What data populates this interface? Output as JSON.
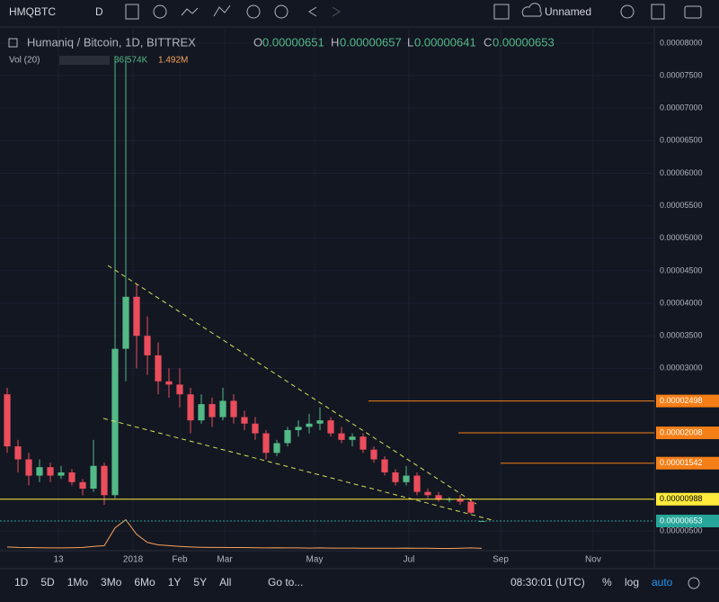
{
  "toolbar": {
    "symbol": "HMQBTC",
    "interval": "D",
    "layout": "Unnamed"
  },
  "legend": {
    "title": "Humaniq / Bitcoin, 1D, BITTREX",
    "o_label": "O",
    "o": 6.51e-06,
    "h_label": "H",
    "h": 6.57e-06,
    "l_label": "L",
    "l": 6.41e-06,
    "c_label": "C",
    "c": 6.53e-06,
    "vol_title": "Vol (20)",
    "vol_value": "36.574K",
    "vol_ma": "1.492M"
  },
  "bottom_bar": {
    "ranges": [
      "1D",
      "5D",
      "1Mo",
      "3Mo",
      "6Mo",
      "1Y",
      "5Y",
      "All"
    ],
    "goto": "Go to...",
    "clock": "08:30:01 (UTC)",
    "percent": "%",
    "log": "log",
    "auto": "auto"
  },
  "chart_data": {
    "type": "candlestick",
    "up_color": "#53b987",
    "down_color": "#eb4d5c",
    "open": [
      2.6e-05,
      1.8e-05,
      1.6e-05,
      1.35e-05,
      1.48e-05,
      1.35e-05,
      1.4e-05,
      1.25e-05,
      1.15e-05,
      1.5e-05,
      1.05e-05,
      3.3e-05,
      4.1e-05,
      3.5e-05,
      3.2e-05,
      2.8e-05,
      2.75e-05,
      2.6e-05,
      2.2e-05,
      2.45e-05,
      2.25e-05,
      2.5e-05,
      2.25e-05,
      2.15e-05,
      2e-05,
      1.7e-05,
      1.85e-05,
      2.05e-05,
      2.1e-05,
      2.15e-05,
      2.2e-05,
      2e-05,
      1.9e-05,
      1.95e-05,
      1.75e-05,
      1.6e-05,
      1.4e-05,
      1.25e-05,
      1.35e-05,
      1.1e-05,
      1.05e-05,
      9.8e-06,
      9.9e-06,
      9.5e-06,
      6.51e-06
    ],
    "high": [
      2.7e-05,
      1.9e-05,
      1.7e-05,
      1.6e-05,
      1.55e-05,
      1.5e-05,
      1.45e-05,
      1.3e-05,
      1.9e-05,
      1.55e-05,
      7.8e-05,
      7.8e-05,
      4.3e-05,
      3.8e-05,
      3.4e-05,
      3e-05,
      3e-05,
      2.7e-05,
      2.6e-05,
      2.55e-05,
      2.7e-05,
      2.6e-05,
      2.35e-05,
      2.25e-05,
      2.05e-05,
      1.9e-05,
      2.1e-05,
      2.2e-05,
      2.3e-05,
      2.4e-05,
      2.25e-05,
      2.1e-05,
      2e-05,
      2e-05,
      1.8e-05,
      1.65e-05,
      1.45e-05,
      1.5e-05,
      1.4e-05,
      1.15e-05,
      1.1e-05,
      1.02e-05,
      1.05e-05,
      1e-05,
      6.57e-06
    ],
    "low": [
      1.7e-05,
      1.4e-05,
      1.2e-05,
      1.25e-05,
      1.25e-05,
      1.3e-05,
      1.2e-05,
      1.05e-05,
      1.1e-05,
      9e-06,
      1e-05,
      2.8e-05,
      3e-05,
      2.9e-05,
      2.6e-05,
      2.55e-05,
      2.4e-05,
      2e-05,
      2.15e-05,
      2.1e-05,
      2.2e-05,
      2.15e-05,
      2.05e-05,
      1.9e-05,
      1.6e-05,
      1.65e-05,
      1.8e-05,
      1.95e-05,
      2e-05,
      2.05e-05,
      1.95e-05,
      1.85e-05,
      1.8e-05,
      1.7e-05,
      1.55e-05,
      1.35e-05,
      1.2e-05,
      1.2e-05,
      1.05e-05,
      1e-05,
      9.5e-06,
      9.4e-06,
      9e-06,
      7.6e-06,
      6.41e-06
    ],
    "close": [
      1.8e-05,
      1.6e-05,
      1.35e-05,
      1.48e-05,
      1.35e-05,
      1.4e-05,
      1.25e-05,
      1.15e-05,
      1.5e-05,
      1.05e-05,
      3.3e-05,
      4.1e-05,
      3.5e-05,
      3.2e-05,
      2.8e-05,
      2.75e-05,
      2.6e-05,
      2.2e-05,
      2.45e-05,
      2.25e-05,
      2.5e-05,
      2.25e-05,
      2.15e-05,
      2e-05,
      1.7e-05,
      1.85e-05,
      2.05e-05,
      2.1e-05,
      2.15e-05,
      2.2e-05,
      2e-05,
      1.9e-05,
      1.95e-05,
      1.75e-05,
      1.6e-05,
      1.4e-05,
      1.25e-05,
      1.35e-05,
      1.1e-05,
      1.05e-05,
      9.8e-06,
      9.9e-06,
      9.5e-06,
      7.8e-06,
      6.53e-06
    ],
    "volume": [
      120000,
      90000,
      80000,
      70000,
      60000,
      60000,
      70000,
      90000,
      150000,
      200000,
      1300000,
      1800000,
      900000,
      400000,
      250000,
      200000,
      150000,
      120000,
      100000,
      90000,
      90000,
      80000,
      80000,
      70000,
      60000,
      70000,
      60000,
      60000,
      50000,
      60000,
      50000,
      50000,
      50000,
      40000,
      40000,
      40000,
      40000,
      50000,
      40000,
      40000,
      30000,
      30000,
      40000,
      60000,
      36574
    ],
    "volume_color": "#f7a35c",
    "vlim": [
      0,
      2000000
    ],
    "xlim": [
      -0.667,
      60
    ],
    "xticks": [
      {
        "value": 4.75,
        "label": "13"
      },
      {
        "value": 11.67,
        "label": "2018"
      },
      {
        "value": 16,
        "label": "Feb"
      },
      {
        "value": 20.17,
        "label": "Mar"
      },
      {
        "value": 28.5,
        "label": "May"
      },
      {
        "value": 37.25,
        "label": "Jul"
      },
      {
        "value": 45.75,
        "label": "Sep"
      },
      {
        "value": 54.33,
        "label": "Nov"
      }
    ],
    "ylim": [
      1.96e-06,
      8.22e-05
    ],
    "yticks": [
      {
        "value": 5e-06,
        "label": "0.00000500"
      },
      {
        "value": 3e-05,
        "label": "0.00003000"
      },
      {
        "value": 3.5e-05,
        "label": "0.00003500"
      },
      {
        "value": 4e-05,
        "label": "0.00004000"
      },
      {
        "value": 4.5e-05,
        "label": "0.00004500"
      },
      {
        "value": 5e-05,
        "label": "0.00005000"
      },
      {
        "value": 5.5e-05,
        "label": "0.00005500"
      },
      {
        "value": 6e-05,
        "label": "0.00006000"
      },
      {
        "value": 6.5e-05,
        "label": "0.00006500"
      },
      {
        "value": 7e-05,
        "label": "0.00007000"
      },
      {
        "value": 7.5e-05,
        "label": "0.00007500"
      },
      {
        "value": 8e-05,
        "label": "0.00008000"
      }
    ],
    "grid": true,
    "levels": [
      {
        "value": 2.498e-05,
        "color": "#f57f17"
      },
      {
        "value": 2.008e-05,
        "color": "#f57f17"
      },
      {
        "value": 1.542e-05,
        "color": "#f57f17"
      },
      {
        "value": 9.88e-06,
        "color": "#ffeb3b"
      },
      {
        "value": 6.53e-06,
        "color": "#26a69a"
      }
    ]
  }
}
